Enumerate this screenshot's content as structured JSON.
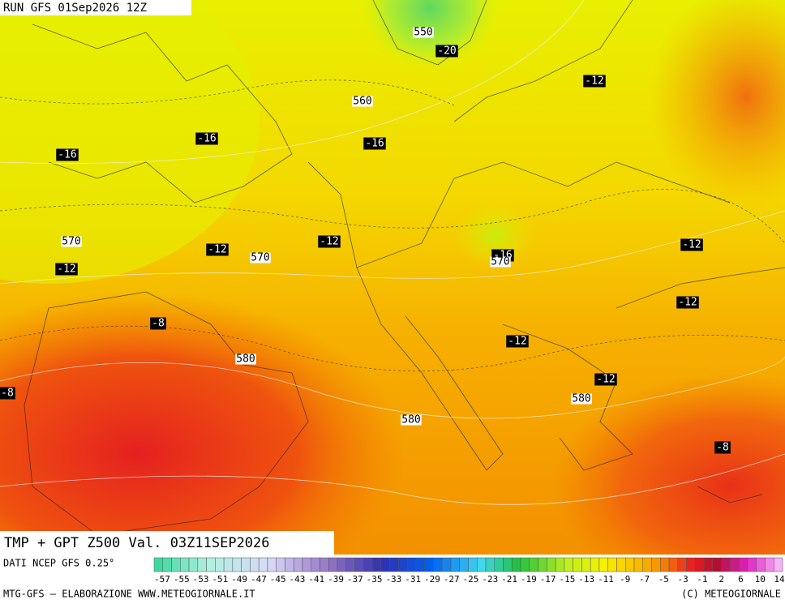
{
  "header": {
    "run": "RUN GFS 01Sep2026 12Z"
  },
  "map": {
    "height_labels": [
      "550",
      "560",
      "570",
      "570",
      "570",
      "580",
      "580",
      "580"
    ],
    "temperature_labels": [
      "-20",
      "-12",
      "-16",
      "-16",
      "-16",
      "-12",
      "-12",
      "-12",
      "-12",
      "-16",
      "-12",
      "-8",
      "-12",
      "-12",
      "-8",
      "-8"
    ]
  },
  "footer": {
    "title": "TMP + GPT Z500 Val. 03Z11SEP2026",
    "source": "DATI NCEP GFS 0.25°",
    "credit": "MTG-GFS — ELABORAZIONE WWW.METEOGIORNALE.IT",
    "copyright": "(C) METEOGIORNALE",
    "scale_labels": [
      "-57",
      "-55",
      "-53",
      "-51",
      "-49",
      "-47",
      "-45",
      "-43",
      "-41",
      "-39",
      "-37",
      "-35",
      "-33",
      "-31",
      "-29",
      "-27",
      "-25",
      "-23",
      "-21",
      "-19",
      "-17",
      "-15",
      "-13",
      "-11",
      "-9",
      "-7",
      "-5",
      "-3",
      "-1",
      "2",
      "6",
      "10",
      "14"
    ]
  }
}
